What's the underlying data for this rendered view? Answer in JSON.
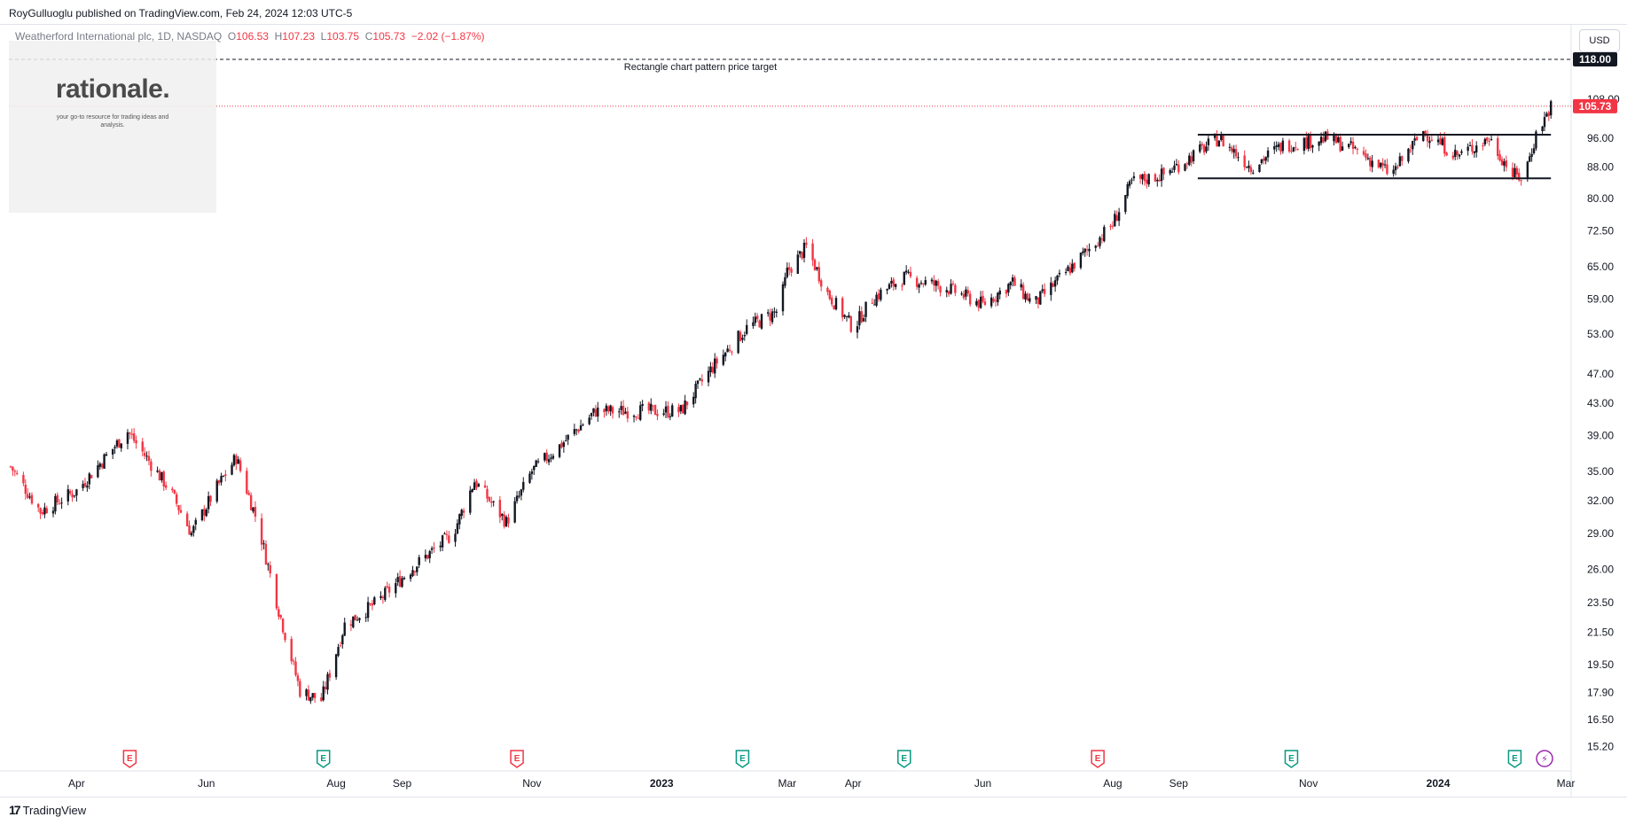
{
  "header": {
    "publisher": "RoyGulluoglu published on TradingView.com, Feb 24, 2024 12:03 UTC-5"
  },
  "legend": {
    "symbol": "Weatherford International plc, 1D, NASDAQ",
    "o_label": "O",
    "o_value": "106.53",
    "h_label": "H",
    "h_value": "107.23",
    "l_label": "L",
    "l_value": "103.75",
    "c_label": "C",
    "c_value": "105.73",
    "change": "−2.02 (−1.87%)"
  },
  "watermark": {
    "title": "rationale.",
    "subtitle": "your go-to resource for trading ideas and analysis."
  },
  "currency_button": "USD",
  "footer": {
    "logo": "17",
    "brand": "TradingView"
  },
  "colors": {
    "up": "#131722",
    "down": "#f23645",
    "price_line": "#f23645",
    "target_line": "#131722",
    "earnings": "#f23645",
    "dividend": "#089981"
  },
  "icons": [
    "earnings-icon",
    "dividend-icon",
    "lightning-icon",
    "tradingview-logo-icon"
  ],
  "chart_data": {
    "type": "candlestick",
    "scale": "log",
    "y_ticks": [
      "108.00",
      "96.00",
      "88.00",
      "80.00",
      "72.50",
      "65.00",
      "59.00",
      "53.00",
      "47.00",
      "43.00",
      "39.00",
      "35.00",
      "32.00",
      "29.00",
      "26.00",
      "23.50",
      "21.50",
      "19.50",
      "17.90",
      "16.50",
      "15.20"
    ],
    "x_ticks": [
      {
        "label": "Apr",
        "date": "2022-04-01"
      },
      {
        "label": "Jun",
        "date": "2022-06-01"
      },
      {
        "label": "Aug",
        "date": "2022-08-01"
      },
      {
        "label": "Sep",
        "date": "2022-09-01"
      },
      {
        "label": "Nov",
        "date": "2022-11-01"
      },
      {
        "label": "2023",
        "date": "2023-01-01"
      },
      {
        "label": "Mar",
        "date": "2023-03-01"
      },
      {
        "label": "Apr",
        "date": "2023-04-01"
      },
      {
        "label": "Jun",
        "date": "2023-06-01"
      },
      {
        "label": "Aug",
        "date": "2023-08-01"
      },
      {
        "label": "Sep",
        "date": "2023-09-01"
      },
      {
        "label": "Nov",
        "date": "2023-11-01"
      },
      {
        "label": "2024",
        "date": "2024-01-01"
      },
      {
        "label": "Mar",
        "date": "2024-03-01"
      }
    ],
    "key_prices": [
      {
        "date": "2022-03-01",
        "price": 35.5
      },
      {
        "date": "2022-03-15",
        "price": 31
      },
      {
        "date": "2022-04-01",
        "price": 33
      },
      {
        "date": "2022-04-25",
        "price": 39.5
      },
      {
        "date": "2022-05-15",
        "price": 33
      },
      {
        "date": "2022-05-25",
        "price": 29
      },
      {
        "date": "2022-06-05",
        "price": 33
      },
      {
        "date": "2022-06-15",
        "price": 36.5
      },
      {
        "date": "2022-06-25",
        "price": 30
      },
      {
        "date": "2022-07-05",
        "price": 23
      },
      {
        "date": "2022-07-15",
        "price": 18
      },
      {
        "date": "2022-07-25",
        "price": 17.5
      },
      {
        "date": "2022-08-05",
        "price": 22
      },
      {
        "date": "2022-08-20",
        "price": 23.5
      },
      {
        "date": "2022-09-05",
        "price": 26
      },
      {
        "date": "2022-09-25",
        "price": 29
      },
      {
        "date": "2022-10-05",
        "price": 34
      },
      {
        "date": "2022-10-20",
        "price": 30
      },
      {
        "date": "2022-11-01",
        "price": 35
      },
      {
        "date": "2022-11-15",
        "price": 38
      },
      {
        "date": "2022-12-01",
        "price": 42
      },
      {
        "date": "2022-12-20",
        "price": 42
      },
      {
        "date": "2023-01-10",
        "price": 42
      },
      {
        "date": "2023-01-25",
        "price": 48
      },
      {
        "date": "2023-02-10",
        "price": 54
      },
      {
        "date": "2023-02-25",
        "price": 57
      },
      {
        "date": "2023-03-01",
        "price": 64
      },
      {
        "date": "2023-03-10",
        "price": 69
      },
      {
        "date": "2023-03-20",
        "price": 60
      },
      {
        "date": "2023-04-01",
        "price": 54
      },
      {
        "date": "2023-04-10",
        "price": 59
      },
      {
        "date": "2023-04-25",
        "price": 63
      },
      {
        "date": "2023-05-15",
        "price": 61
      },
      {
        "date": "2023-06-01",
        "price": 58
      },
      {
        "date": "2023-06-15",
        "price": 62
      },
      {
        "date": "2023-06-25",
        "price": 58
      },
      {
        "date": "2023-07-15",
        "price": 66
      },
      {
        "date": "2023-08-01",
        "price": 74
      },
      {
        "date": "2023-08-10",
        "price": 84
      },
      {
        "date": "2023-08-25",
        "price": 86
      },
      {
        "date": "2023-09-10",
        "price": 92
      },
      {
        "date": "2023-09-20",
        "price": 96
      },
      {
        "date": "2023-10-05",
        "price": 88
      },
      {
        "date": "2023-10-20",
        "price": 94
      },
      {
        "date": "2023-11-10",
        "price": 96
      },
      {
        "date": "2023-11-25",
        "price": 92
      },
      {
        "date": "2023-12-10",
        "price": 86
      },
      {
        "date": "2023-12-25",
        "price": 98
      },
      {
        "date": "2024-01-10",
        "price": 91
      },
      {
        "date": "2024-01-25",
        "price": 96
      },
      {
        "date": "2024-02-05",
        "price": 86
      },
      {
        "date": "2024-02-10",
        "price": 85
      },
      {
        "date": "2024-02-16",
        "price": 97
      },
      {
        "date": "2024-02-23",
        "price": 105.73
      }
    ],
    "price_line": {
      "value": 105.73,
      "label": "105.73"
    },
    "target_line": {
      "value": 118.0,
      "label": "118.00",
      "text": "Rectangle chart pattern price target"
    },
    "rectangle": {
      "start": "2023-09-10",
      "end": "2024-02-23",
      "upper": 97,
      "lower": 85
    },
    "events": [
      {
        "type": "earnings",
        "date": "2022-04-26",
        "label": "E"
      },
      {
        "type": "dividend",
        "date": "2022-07-26",
        "label": "E"
      },
      {
        "type": "earnings",
        "date": "2022-10-25",
        "label": "E"
      },
      {
        "type": "dividend",
        "date": "2023-02-08",
        "label": "E"
      },
      {
        "type": "dividend",
        "date": "2023-04-25",
        "label": "E"
      },
      {
        "type": "earnings",
        "date": "2023-07-25",
        "label": "E"
      },
      {
        "type": "dividend",
        "date": "2023-10-24",
        "label": "E"
      },
      {
        "type": "dividend",
        "date": "2024-02-06",
        "label": "E"
      },
      {
        "type": "split",
        "date": "2024-02-20",
        "label": "⚡"
      }
    ]
  }
}
